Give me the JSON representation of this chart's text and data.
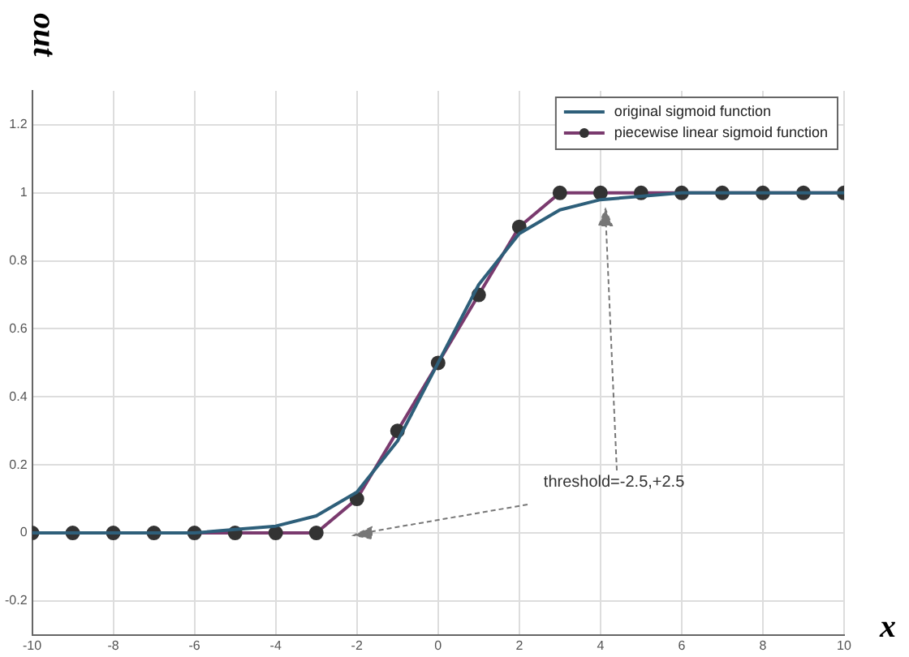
{
  "chart_data": {
    "type": "line",
    "xlabel": "x",
    "ylabel": "out",
    "series": [
      {
        "name": "original sigmoid function",
        "color": "#2e5f7a",
        "marker": "none",
        "x": [
          -10,
          -6,
          -5,
          -4,
          -3,
          -2,
          -1,
          0,
          1,
          2,
          3,
          4,
          5,
          6,
          10
        ],
        "values": [
          0,
          0,
          0.01,
          0.02,
          0.05,
          0.12,
          0.27,
          0.5,
          0.73,
          0.88,
          0.95,
          0.98,
          0.99,
          1,
          1
        ]
      },
      {
        "name": "piecewise linear sigmoid function",
        "color": "#7a3a6e",
        "marker": "circle",
        "x": [
          -10,
          -9,
          -8,
          -7,
          -6,
          -5,
          -4,
          -3,
          -2,
          -1,
          0,
          1,
          2,
          3,
          4,
          5,
          6,
          7,
          8,
          9,
          10
        ],
        "values": [
          0,
          0,
          0,
          0,
          0,
          0,
          0,
          0,
          0.1,
          0.3,
          0.5,
          0.7,
          0.9,
          1,
          1,
          1,
          1,
          1,
          1,
          1,
          1
        ]
      }
    ],
    "xlim": [
      -10,
      10
    ],
    "xticks": [
      -10,
      -8,
      -6,
      -4,
      -2,
      0,
      2,
      4,
      6,
      8,
      10
    ],
    "ylim": [
      -0.3,
      1.3
    ],
    "yticks": [
      -0.2,
      0,
      0.2,
      0.4,
      0.6,
      0.8,
      1,
      1.2
    ],
    "annotations": [
      "threshold=-2.5,+2.5"
    ],
    "grid": true,
    "legend": "top right"
  }
}
